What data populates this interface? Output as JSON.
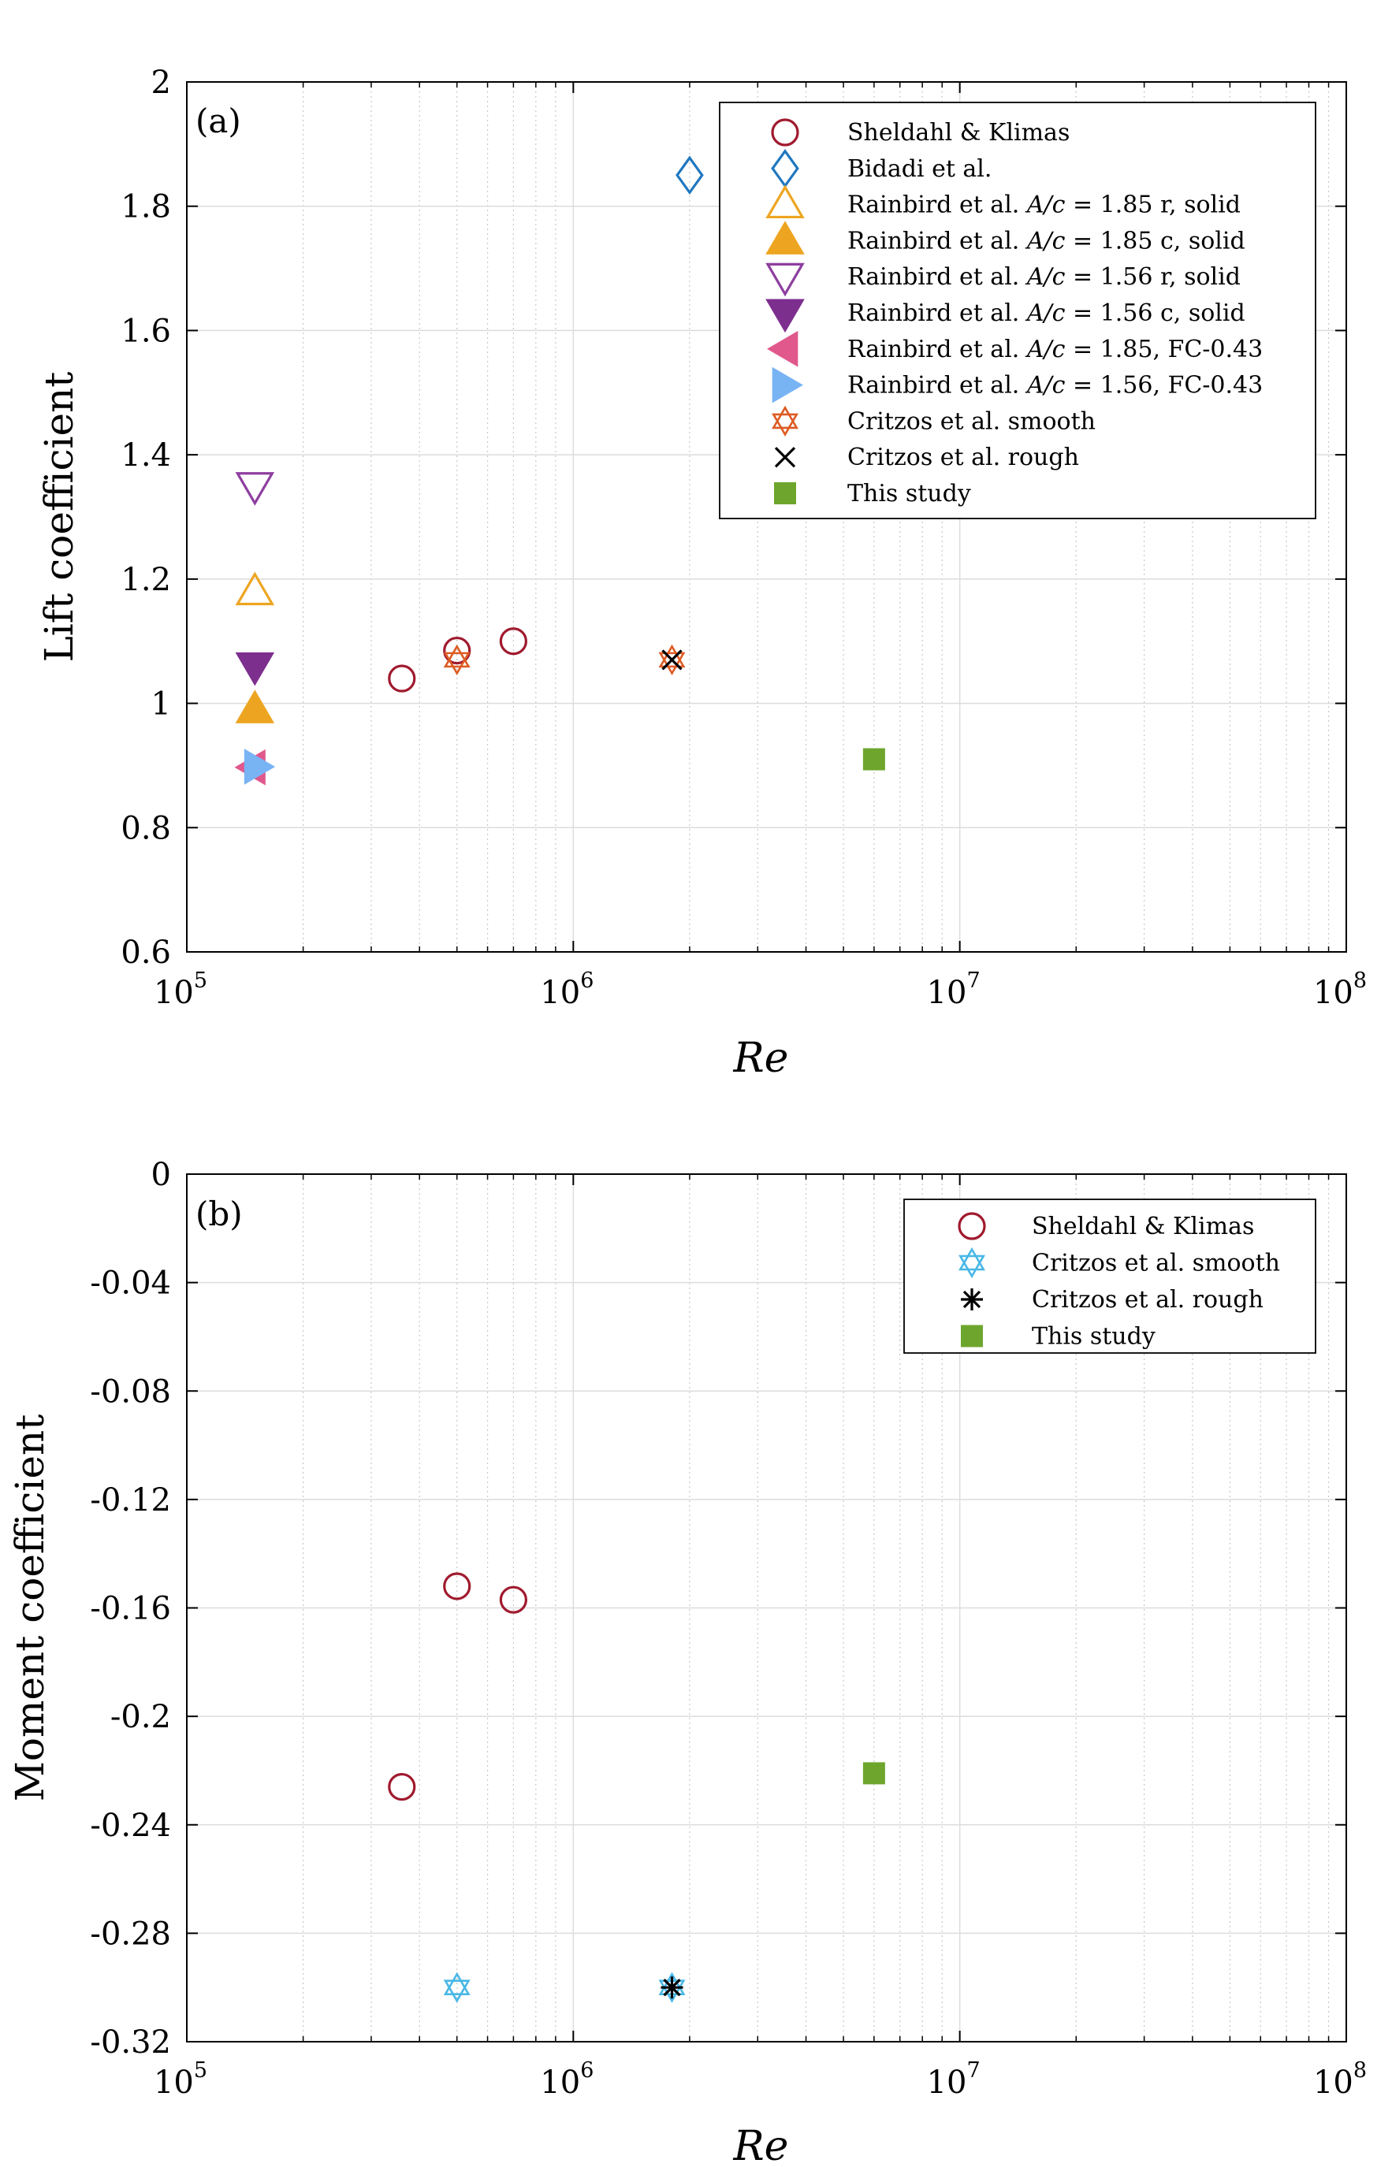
{
  "chart_data": [
    {
      "type": "scatter",
      "panel_label": "(a)",
      "xlabel": "Re",
      "ylabel": "Lift coefficient",
      "xscale": "log",
      "xlim": [
        100000,
        100000000
      ],
      "ylim": [
        0.6,
        2.0
      ],
      "xticks": [
        {
          "value": 100000,
          "base": "10",
          "exp": "5"
        },
        {
          "value": 1000000,
          "base": "10",
          "exp": "6"
        },
        {
          "value": 10000000,
          "base": "10",
          "exp": "7"
        },
        {
          "value": 100000000,
          "base": "10",
          "exp": "8"
        }
      ],
      "yticks": [
        {
          "value": 0.6,
          "label": "0.6"
        },
        {
          "value": 0.8,
          "label": "0.8"
        },
        {
          "value": 1.0,
          "label": "1"
        },
        {
          "value": 1.2,
          "label": "1.2"
        },
        {
          "value": 1.4,
          "label": "1.4"
        },
        {
          "value": 1.6,
          "label": "1.6"
        },
        {
          "value": 1.8,
          "label": "1.8"
        },
        {
          "value": 2.0,
          "label": "2"
        }
      ],
      "grid": true,
      "legend_position": "top-right",
      "series": [
        {
          "name": "Sheldahl & Klimas",
          "marker": "circle-open",
          "color": "#a01a2e",
          "points": [
            {
              "x": 360000,
              "y": 1.04
            },
            {
              "x": 500000,
              "y": 1.085
            },
            {
              "x": 700000,
              "y": 1.1
            }
          ]
        },
        {
          "name": "Bidadi et al.",
          "marker": "diamond-open",
          "color": "#1f77c0",
          "points": [
            {
              "x": 2000000,
              "y": 1.85
            }
          ]
        },
        {
          "name": "Rainbird et al. A/c = 1.85 r, solid",
          "marker": "triangle-up-open",
          "color": "#eda521",
          "points": [
            {
              "x": 150000,
              "y": 1.18
            }
          ]
        },
        {
          "name": "Rainbird et al. A/c = 1.85 c, solid",
          "marker": "triangle-up-filled",
          "color": "#eda521",
          "points": [
            {
              "x": 150000,
              "y": 0.99
            }
          ]
        },
        {
          "name": "Rainbird et al. A/c = 1.56 r, solid",
          "marker": "triangle-down-open",
          "color": "#8e3f9f",
          "points": [
            {
              "x": 150000,
              "y": 1.35
            }
          ]
        },
        {
          "name": "Rainbird et al. A/c = 1.56 c, solid",
          "marker": "triangle-down-filled",
          "color": "#7d2f8e",
          "points": [
            {
              "x": 150000,
              "y": 1.06
            }
          ]
        },
        {
          "name": "Rainbird et al. A/c = 1.85, FC-0.43",
          "marker": "triangle-left-filled",
          "color": "#e0588c",
          "points": [
            {
              "x": 148000,
              "y": 0.897
            }
          ]
        },
        {
          "name": "Rainbird et al. A/c = 1.56, FC-0.43",
          "marker": "triangle-right-filled",
          "color": "#78b3f4",
          "points": [
            {
              "x": 152000,
              "y": 0.898
            }
          ]
        },
        {
          "name": "Critzos et al. smooth",
          "marker": "hexagram-open",
          "color": "#dd5b23",
          "points": [
            {
              "x": 500000,
              "y": 1.07
            },
            {
              "x": 1800000,
              "y": 1.07
            }
          ]
        },
        {
          "name": "Critzos et al. rough",
          "marker": "x",
          "color": "#000000",
          "points": [
            {
              "x": 1800000,
              "y": 1.07
            }
          ]
        },
        {
          "name": "This study",
          "marker": "square-filled",
          "color": "#6ea62d",
          "points": [
            {
              "x": 6000000,
              "y": 0.91
            }
          ]
        }
      ],
      "legend": [
        {
          "label": "Sheldahl & Klimas"
        },
        {
          "label": "Bidadi et al."
        },
        {
          "label": "Rainbird et al. A/c = 1.85 r, solid"
        },
        {
          "label": "Rainbird et al. A/c = 1.85 c, solid"
        },
        {
          "label": "Rainbird et al. A/c = 1.56 r, solid"
        },
        {
          "label": "Rainbird et al. A/c = 1.56 c, solid"
        },
        {
          "label": "Rainbird et al. A/c = 1.85, FC-0.43"
        },
        {
          "label": "Rainbird et al. A/c = 1.56, FC-0.43"
        },
        {
          "label": "Critzos et al. smooth"
        },
        {
          "label": "Critzos et al. rough"
        },
        {
          "label": "This study"
        }
      ]
    },
    {
      "type": "scatter",
      "panel_label": "(b)",
      "xlabel": "Re",
      "ylabel": "Moment coefficient",
      "xscale": "log",
      "xlim": [
        100000,
        100000000
      ],
      "ylim": [
        -0.32,
        0.0
      ],
      "xticks": [
        {
          "value": 100000,
          "base": "10",
          "exp": "5"
        },
        {
          "value": 1000000,
          "base": "10",
          "exp": "6"
        },
        {
          "value": 10000000,
          "base": "10",
          "exp": "7"
        },
        {
          "value": 100000000,
          "base": "10",
          "exp": "8"
        }
      ],
      "yticks": [
        {
          "value": -0.32,
          "label": "-0.32"
        },
        {
          "value": -0.28,
          "label": "-0.28"
        },
        {
          "value": -0.24,
          "label": "-0.24"
        },
        {
          "value": -0.2,
          "label": "-0.2"
        },
        {
          "value": -0.16,
          "label": "-0.16"
        },
        {
          "value": -0.12,
          "label": "-0.12"
        },
        {
          "value": -0.08,
          "label": "-0.08"
        },
        {
          "value": -0.04,
          "label": "-0.04"
        },
        {
          "value": 0.0,
          "label": "0"
        }
      ],
      "grid": true,
      "legend_position": "top-right",
      "series": [
        {
          "name": "Sheldahl & Klimas",
          "marker": "circle-open",
          "color": "#a01a2e",
          "points": [
            {
              "x": 360000,
              "y": -0.226
            },
            {
              "x": 500000,
              "y": -0.152
            },
            {
              "x": 700000,
              "y": -0.157
            }
          ]
        },
        {
          "name": "Critzos et al. smooth",
          "marker": "hexagram-open",
          "color": "#49b7e6",
          "points": [
            {
              "x": 500000,
              "y": -0.3
            },
            {
              "x": 1800000,
              "y": -0.3
            }
          ]
        },
        {
          "name": "Critzos et al. rough",
          "marker": "asterisk",
          "color": "#000000",
          "points": [
            {
              "x": 1800000,
              "y": -0.3
            }
          ]
        },
        {
          "name": "This study",
          "marker": "square-filled",
          "color": "#6ea62d",
          "points": [
            {
              "x": 6000000,
              "y": -0.221
            }
          ]
        }
      ],
      "legend": [
        {
          "label": "Sheldahl & Klimas"
        },
        {
          "label": "Critzos et al. smooth"
        },
        {
          "label": "Critzos et al. rough"
        },
        {
          "label": "This study"
        }
      ]
    }
  ]
}
